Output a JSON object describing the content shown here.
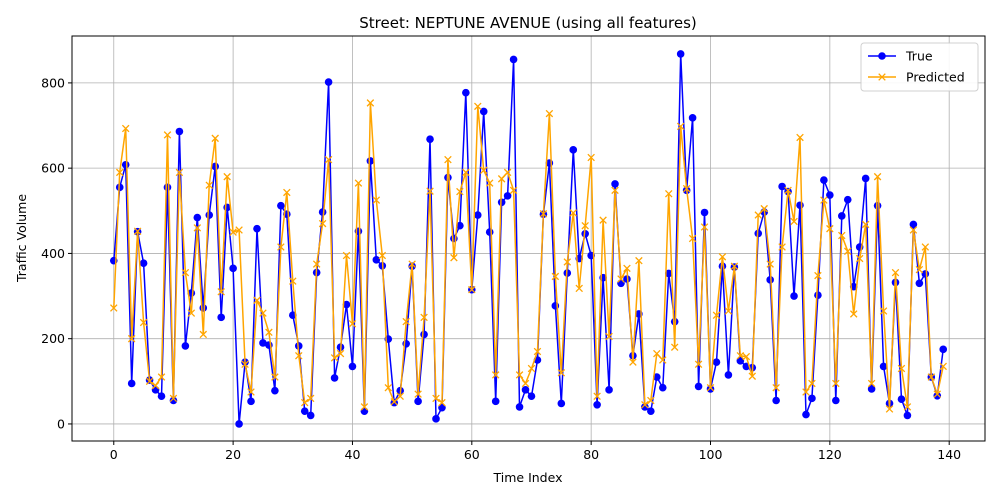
{
  "chart_data": {
    "type": "line",
    "title": "Street: NEPTUNE AVENUE (using all features)",
    "xlabel": "Time Index",
    "ylabel": "Traffic Volume",
    "xlim": [
      -7,
      146
    ],
    "ylim": [
      -40,
      910
    ],
    "xticks": [
      0,
      20,
      40,
      60,
      80,
      100,
      120,
      140
    ],
    "yticks": [
      0,
      200,
      400,
      600,
      800
    ],
    "grid": true,
    "legend_position": "top-right",
    "series": [
      {
        "name": "True",
        "color": "#0000ff",
        "marker": "circle",
        "x": [
          0,
          1,
          2,
          3,
          4,
          5,
          6,
          7,
          8,
          9,
          10,
          11,
          12,
          13,
          14,
          15,
          16,
          17,
          18,
          19,
          20,
          21,
          22,
          23,
          24,
          25,
          26,
          27,
          28,
          29,
          30,
          31,
          32,
          33,
          34,
          35,
          36,
          37,
          38,
          39,
          40,
          41,
          42,
          43,
          44,
          45,
          46,
          47,
          48,
          49,
          50,
          51,
          52,
          53,
          54,
          55,
          56,
          57,
          58,
          59,
          60,
          61,
          62,
          63,
          64,
          65,
          66,
          67,
          68,
          69,
          70,
          71,
          72,
          73,
          74,
          75,
          76,
          77,
          78,
          79,
          80,
          81,
          82,
          83,
          84,
          85,
          86,
          87,
          88,
          89,
          90,
          91,
          92,
          93,
          94,
          95,
          96,
          97,
          98,
          99,
          100,
          101,
          102,
          103,
          104,
          105,
          106,
          107,
          108,
          109,
          110,
          111,
          112,
          113,
          114,
          115,
          116,
          117,
          118,
          119,
          120,
          121,
          122,
          123,
          124,
          125,
          126,
          127,
          128,
          129,
          130,
          131,
          132,
          133,
          134,
          135,
          136,
          137,
          138,
          139
        ],
        "y": [
          383,
          555,
          608,
          95,
          451,
          377,
          103,
          80,
          65,
          555,
          55,
          686,
          183,
          307,
          484,
          272,
          490,
          604,
          250,
          508,
          365,
          0,
          145,
          53,
          458,
          190,
          185,
          78,
          512,
          492,
          255,
          183,
          30,
          20,
          355,
          497,
          802,
          108,
          180,
          280,
          135,
          452,
          30,
          617,
          385,
          371,
          199,
          50,
          78,
          188,
          370,
          53,
          210,
          668,
          12,
          38,
          578,
          435,
          465,
          777,
          315,
          490,
          733,
          450,
          53,
          520,
          535,
          855,
          40,
          80,
          65,
          150,
          492,
          612,
          277,
          48,
          354,
          643,
          388,
          446,
          395,
          45,
          343,
          80,
          563,
          330,
          340,
          160,
          258,
          40,
          30,
          110,
          85,
          353,
          240,
          868,
          548,
          718,
          88,
          496,
          82,
          145,
          370,
          115,
          368,
          148,
          135,
          132,
          447,
          497,
          338,
          55,
          557,
          545,
          300,
          513,
          22,
          60,
          302,
          572,
          537,
          55,
          488,
          526,
          322,
          415,
          576,
          82,
          512,
          135,
          48,
          332,
          58,
          20,
          468,
          330,
          352,
          110,
          66,
          175
        ]
      },
      {
        "name": "Predicted",
        "color": "#ffa500",
        "marker": "x",
        "x": [
          0,
          1,
          2,
          3,
          4,
          5,
          6,
          7,
          8,
          9,
          10,
          11,
          12,
          13,
          14,
          15,
          16,
          17,
          18,
          19,
          20,
          21,
          22,
          23,
          24,
          25,
          26,
          27,
          28,
          29,
          30,
          31,
          32,
          33,
          34,
          35,
          36,
          37,
          38,
          39,
          40,
          41,
          42,
          43,
          44,
          45,
          46,
          47,
          48,
          49,
          50,
          51,
          52,
          53,
          54,
          55,
          56,
          57,
          58,
          59,
          60,
          61,
          62,
          63,
          64,
          65,
          66,
          67,
          68,
          69,
          70,
          71,
          72,
          73,
          74,
          75,
          76,
          77,
          78,
          79,
          80,
          81,
          82,
          83,
          84,
          85,
          86,
          87,
          88,
          89,
          90,
          91,
          92,
          93,
          94,
          95,
          96,
          97,
          98,
          99,
          100,
          101,
          102,
          103,
          104,
          105,
          106,
          107,
          108,
          109,
          110,
          111,
          112,
          113,
          114,
          115,
          116,
          117,
          118,
          119,
          120,
          121,
          122,
          123,
          124,
          125,
          126,
          127,
          128,
          129,
          130,
          131,
          132,
          133,
          134,
          135,
          136,
          137,
          138,
          139
        ],
        "y": [
          272,
          590,
          693,
          200,
          452,
          238,
          100,
          90,
          110,
          678,
          60,
          590,
          355,
          260,
          460,
          210,
          560,
          670,
          310,
          580,
          450,
          455,
          140,
          75,
          290,
          260,
          215,
          110,
          415,
          543,
          335,
          160,
          50,
          60,
          375,
          470,
          620,
          155,
          165,
          395,
          235,
          565,
          40,
          753,
          525,
          395,
          85,
          52,
          65,
          240,
          375,
          70,
          250,
          546,
          60,
          50,
          620,
          390,
          545,
          590,
          315,
          745,
          595,
          565,
          115,
          575,
          590,
          548,
          115,
          95,
          130,
          170,
          493,
          728,
          346,
          120,
          380,
          495,
          318,
          465,
          625,
          65,
          478,
          205,
          548,
          340,
          365,
          145,
          383,
          45,
          55,
          165,
          150,
          540,
          180,
          698,
          552,
          435,
          140,
          462,
          85,
          255,
          392,
          265,
          370,
          160,
          158,
          112,
          490,
          505,
          375,
          85,
          415,
          548,
          475,
          672,
          75,
          95,
          348,
          525,
          458,
          95,
          442,
          405,
          258,
          388,
          468,
          95,
          580,
          265,
          35,
          355,
          130,
          40,
          455,
          362,
          415,
          110,
          70,
          135
        ]
      }
    ]
  }
}
